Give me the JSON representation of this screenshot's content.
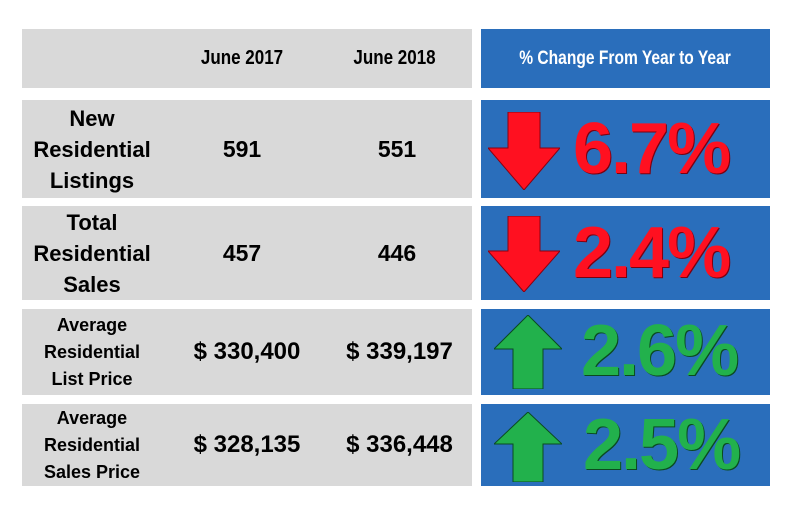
{
  "header": {
    "col1": "June 2017",
    "col2": "June 2018",
    "change": "% Change From Year to Year"
  },
  "rows": [
    {
      "label": "New\nResidential\nListings",
      "v2017": "591",
      "v2018": "551",
      "change": "6.7%",
      "direction": "down",
      "arrow_icon": "down-arrow-icon"
    },
    {
      "label": "Total\nResidential\nSales",
      "v2017": "457",
      "v2018": "446",
      "change": "2.4%",
      "direction": "down",
      "arrow_icon": "down-arrow-icon"
    },
    {
      "label": "Average\nResidential\nList Price",
      "v2017": "$ 330,400",
      "v2018": "$ 339,197",
      "change": "2.6%",
      "direction": "up",
      "arrow_icon": "up-arrow-icon"
    },
    {
      "label": "Average\nResidential\nSales Price",
      "v2017": "$ 328,135",
      "v2018": "$ 336,448",
      "change": "2.5%",
      "direction": "up",
      "arrow_icon": "up-arrow-icon"
    }
  ],
  "colors": {
    "gray_panel": "#d9d9d9",
    "blue_panel": "#2a6ebb",
    "down": "#ff1020",
    "up": "#22b14c"
  }
}
